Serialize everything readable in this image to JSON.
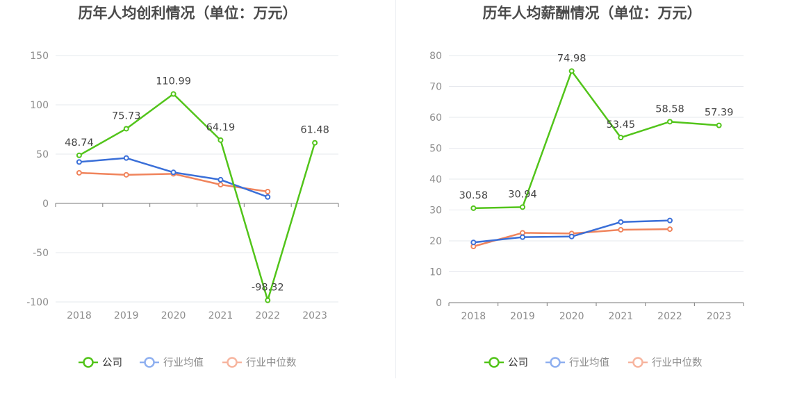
{
  "chart_data": [
    {
      "type": "line",
      "title": "历年人均创利情况（单位：万元）",
      "categories": [
        "2018",
        "2019",
        "2020",
        "2021",
        "2022",
        "2023"
      ],
      "yticks": [
        150,
        100,
        50,
        0,
        -50,
        -100
      ],
      "ylim": [
        -100,
        150
      ],
      "grid": true,
      "legend_position": "bottom",
      "series": [
        {
          "name": "公司",
          "color": "#52c41a",
          "values": [
            48.74,
            75.73,
            110.99,
            64.19,
            -98.32,
            61.48
          ],
          "labels": [
            "48.74",
            "75.73",
            "110.99",
            "64.19",
            "-98.32",
            "61.48"
          ]
        },
        {
          "name": "行业均值",
          "color": "#3a6fd8",
          "values": [
            42,
            46,
            31.5,
            24,
            6.5,
            null
          ]
        },
        {
          "name": "行业中位数",
          "color": "#f0845c",
          "values": [
            31,
            29,
            30,
            19,
            12,
            null
          ]
        }
      ]
    },
    {
      "type": "line",
      "title": "历年人均薪酬情况（单位：万元）",
      "categories": [
        "2018",
        "2019",
        "2020",
        "2021",
        "2022",
        "2023"
      ],
      "yticks": [
        80,
        70,
        60,
        50,
        40,
        30,
        20,
        10,
        0
      ],
      "ylim": [
        0,
        80
      ],
      "grid": true,
      "legend_position": "bottom",
      "series": [
        {
          "name": "公司",
          "color": "#52c41a",
          "values": [
            30.58,
            30.94,
            74.98,
            53.45,
            58.58,
            57.39
          ],
          "labels": [
            "30.58",
            "30.94",
            "74.98",
            "53.45",
            "58.58",
            "57.39"
          ]
        },
        {
          "name": "行业均值",
          "color": "#3a6fd8",
          "values": [
            19.5,
            21.2,
            21.4,
            26.1,
            26.6,
            null
          ]
        },
        {
          "name": "行业中位数",
          "color": "#f0845c",
          "values": [
            18.2,
            22.6,
            22.4,
            23.6,
            23.8,
            null
          ]
        }
      ]
    }
  ],
  "legend": [
    {
      "label": "公司",
      "line_color": "#52c41a",
      "text_color": "#333333"
    },
    {
      "label": "行业均值",
      "line_color": "#8fb0f0",
      "text_color": "#8c8c8c"
    },
    {
      "label": "行业中位数",
      "line_color": "#f7b59f",
      "text_color": "#8c8c8c"
    }
  ]
}
